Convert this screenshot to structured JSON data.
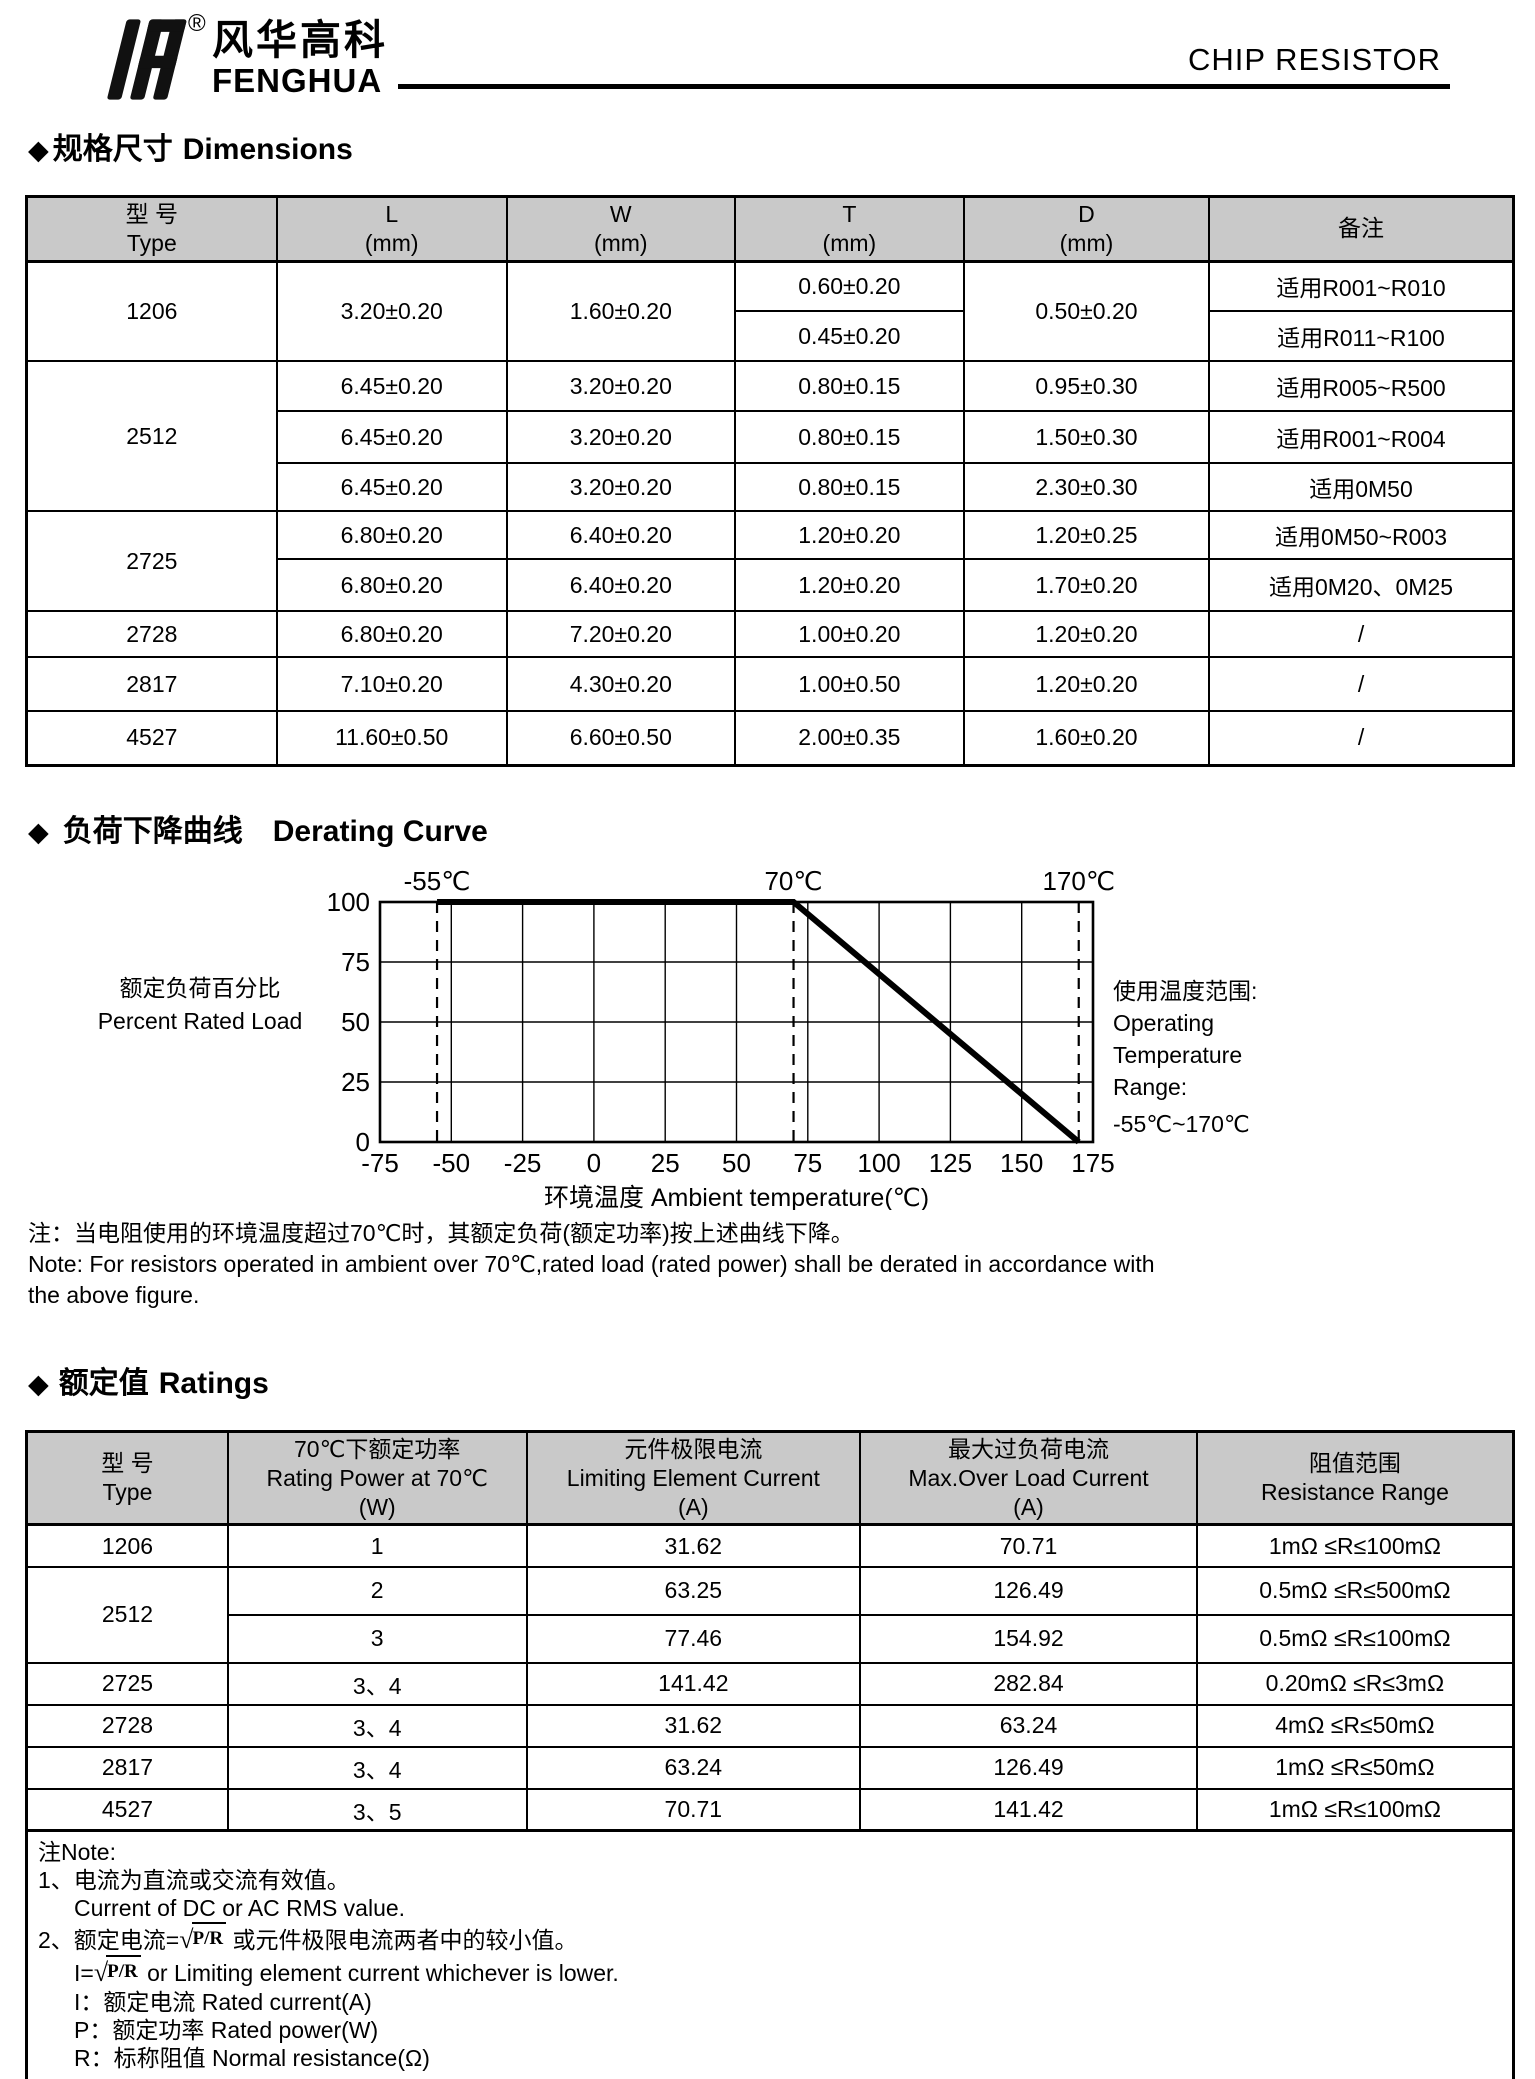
{
  "colors": {
    "table_header_bg": "#c9c9c9",
    "ink": "#000000",
    "paper": "#ffffff"
  },
  "ui": {
    "bullet": "◆",
    "radical_sign": "√"
  },
  "header": {
    "brand_cn": "风华高科",
    "brand_en": "FENGHUA",
    "registered_mark": "®",
    "doc_title": "CHIP RESISTOR"
  },
  "dimensions": {
    "title_cn": "规格尺寸",
    "title_en": "Dimensions",
    "table": {
      "col_headers": [
        {
          "l1": "型 号",
          "l2": "Type"
        },
        {
          "l1": "L",
          "l2": "(mm)"
        },
        {
          "l1": "W",
          "l2": "(mm)"
        },
        {
          "l1": "T",
          "l2": "(mm)"
        },
        {
          "l1": "D",
          "l2": "(mm)"
        },
        {
          "l1": "备注"
        }
      ],
      "g1206": {
        "type": "1206",
        "l": "3.20±0.20",
        "w": "1.60±0.20",
        "t1": "0.60±0.20",
        "t2": "0.45±0.20",
        "d": "0.50±0.20",
        "note1": "适用R001~R010",
        "note2": "适用R011~R100"
      },
      "g2512": {
        "type": "2512",
        "rows": [
          {
            "l": "6.45±0.20",
            "w": "3.20±0.20",
            "t": "0.80±0.15",
            "d": "0.95±0.30",
            "note": "适用R005~R500"
          },
          {
            "l": "6.45±0.20",
            "w": "3.20±0.20",
            "t": "0.80±0.15",
            "d": "1.50±0.30",
            "note": "适用R001~R004"
          },
          {
            "l": "6.45±0.20",
            "w": "3.20±0.20",
            "t": "0.80±0.15",
            "d": "2.30±0.30",
            "note": "适用0M50"
          }
        ]
      },
      "g2725": {
        "type": "2725",
        "rows": [
          {
            "l": "6.80±0.20",
            "w": "6.40±0.20",
            "t": "1.20±0.20",
            "d": "1.20±0.25",
            "note": "适用0M50~R003"
          },
          {
            "l": "6.80±0.20",
            "w": "6.40±0.20",
            "t": "1.20±0.20",
            "d": "1.70±0.20",
            "note": "适用0M20、0M25"
          }
        ]
      },
      "g2728": {
        "type": "2728",
        "l": "6.80±0.20",
        "w": "7.20±0.20",
        "t": "1.00±0.20",
        "d": "1.20±0.20",
        "note": "/"
      },
      "g2817": {
        "type": "2817",
        "l": "7.10±0.20",
        "w": "4.30±0.20",
        "t": "1.00±0.50",
        "d": "1.20±0.20",
        "note": "/"
      },
      "g4527": {
        "type": "4527",
        "l": "11.60±0.50",
        "w": "6.60±0.50",
        "t": "2.00±0.35",
        "d": "1.60±0.20",
        "note": "/"
      }
    }
  },
  "derating": {
    "title_cn": "负荷下降曲线",
    "title_en": "Derating Curve",
    "note_cn": "注：当电阻使用的环境温度超过70℃时，其额定负荷(额定功率)按上述曲线下降。",
    "note_en1": "Note: For resistors operated in ambient over 70℃,rated load (rated power) shall be derated in accordance with",
    "note_en2": "the above figure."
  },
  "chart_data": {
    "type": "line",
    "title": "负荷下降曲线 Derating Curve",
    "xlabel": "环境温度 Ambient temperature(℃)",
    "ylabel_cn": "额定负荷百分比",
    "ylabel_en": "Percent Rated Load",
    "xlim": [
      -75,
      175
    ],
    "ylim": [
      0,
      100
    ],
    "x_ticks": [
      -75,
      -50,
      -25,
      0,
      25,
      50,
      75,
      100,
      125,
      150,
      175
    ],
    "y_ticks": [
      0,
      25,
      50,
      75,
      100
    ],
    "grid": true,
    "legend": false,
    "dashed_vlines": [
      -55,
      70,
      170
    ],
    "annotations": [
      {
        "x": -55,
        "label": "-55℃"
      },
      {
        "x": 70,
        "label": "70℃"
      },
      {
        "x": 170,
        "label": "170℃"
      }
    ],
    "series": [
      {
        "name": "Percent rated load vs ambient temperature",
        "points": [
          [
            -55,
            100
          ],
          [
            70,
            100
          ],
          [
            170,
            0
          ]
        ]
      }
    ],
    "side_note_lines": [
      "使用温度范围:",
      "Operating",
      "Temperature",
      "Range:",
      "-55℃~170℃"
    ]
  },
  "ratings": {
    "title_cn": "额定值",
    "title_en": "Ratings",
    "table": {
      "col_headers": [
        {
          "lines": [
            "型 号",
            "Type"
          ]
        },
        {
          "lines": [
            "70℃下额定功率",
            "Rating Power at 70℃",
            "(W)"
          ]
        },
        {
          "lines": [
            "元件极限电流",
            "Limiting Element Current",
            "(A)"
          ]
        },
        {
          "lines": [
            "最大过负荷电流",
            "Max.Over Load Current",
            "(A)"
          ]
        },
        {
          "lines": [
            "阻值范围",
            "Resistance Range"
          ]
        }
      ],
      "g1206": {
        "type": "1206",
        "power": "1",
        "limit": "31.62",
        "overload": "70.71",
        "range": "1mΩ ≤R≤100mΩ"
      },
      "g2512": {
        "type": "2512",
        "rows": [
          {
            "power": "2",
            "limit": "63.25",
            "overload": "126.49",
            "range": "0.5mΩ ≤R≤500mΩ"
          },
          {
            "power": "3",
            "limit": "77.46",
            "overload": "154.92",
            "range": "0.5mΩ ≤R≤100mΩ"
          }
        ]
      },
      "g2725": {
        "type": "2725",
        "power": "3、4",
        "limit": "141.42",
        "overload": "282.84",
        "range": "0.20mΩ ≤R≤3mΩ"
      },
      "g2728": {
        "type": "2728",
        "power": "3、4",
        "limit": "31.62",
        "overload": "63.24",
        "range": "4mΩ ≤R≤50mΩ"
      },
      "g2817": {
        "type": "2817",
        "power": "3、4",
        "limit": "63.24",
        "overload": "126.49",
        "range": "1mΩ ≤R≤50mΩ"
      },
      "g4527": {
        "type": "4527",
        "power": "3、5",
        "limit": "70.71",
        "overload": "141.42",
        "range": "1mΩ ≤R≤100mΩ"
      }
    },
    "note": {
      "heading": "注Note:",
      "item1_cn": "1、电流为直流或交流有效值。",
      "item1_en": "Current of DC or AC RMS value.",
      "item2_cn_pre": "2、额定电流=",
      "item2_cn_post": " 或元件极限电流两者中的较小值。",
      "item2_en_pre": "I=",
      "item2_en_post": " or Limiting element current whichever is lower.",
      "sqrt_expr": "P/R",
      "def_i": "I：额定电流 Rated current(A)",
      "def_p": "P：额定功率 Rated power(W)",
      "def_r": "R：标称阻值 Normal resistance(Ω)"
    }
  }
}
